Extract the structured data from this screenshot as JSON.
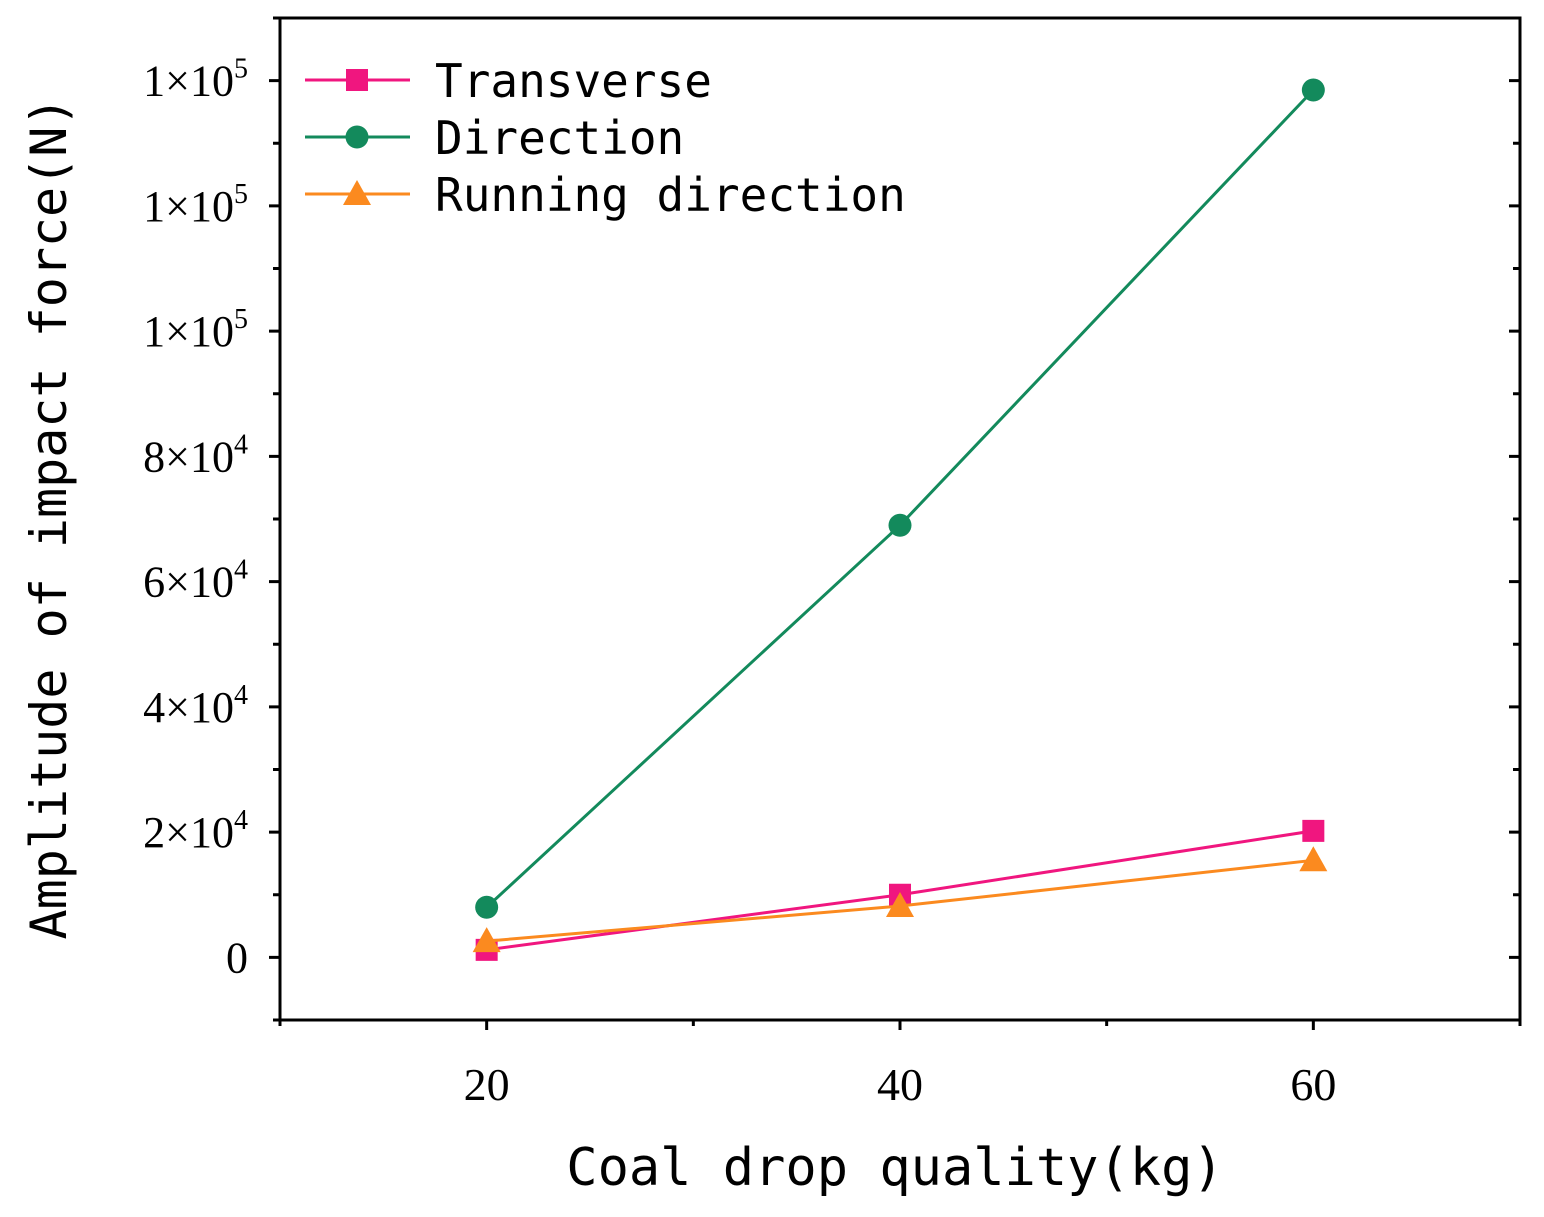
{
  "chart_data": {
    "type": "line",
    "title": "",
    "xlabel": "Coal drop quality(kg)",
    "ylabel": "Amplitude of impact force(N)",
    "xlim": [
      10,
      70
    ],
    "ylim": [
      -10000,
      150000
    ],
    "x": [
      20,
      40,
      60
    ],
    "xticks": [
      {
        "value": 20,
        "label": "20"
      },
      {
        "value": 40,
        "label": "40"
      },
      {
        "value": 60,
        "label": "60"
      }
    ],
    "xminor": [
      10,
      30,
      50,
      70
    ],
    "yticks": [
      {
        "value": 0,
        "label": "0"
      },
      {
        "value": 20000,
        "label": "2×10",
        "exp": "4"
      },
      {
        "value": 40000,
        "label": "4×10",
        "exp": "4"
      },
      {
        "value": 60000,
        "label": "6×10",
        "exp": "4"
      },
      {
        "value": 80000,
        "label": "8×10",
        "exp": "4"
      },
      {
        "value": 100000,
        "label": "1×10",
        "exp": "5"
      },
      {
        "value": 120000,
        "label": "1×10",
        "exp": "5"
      },
      {
        "value": 140000,
        "label": "1×10",
        "exp": "5"
      }
    ],
    "yminor": [
      -10000,
      10000,
      30000,
      50000,
      70000,
      90000,
      110000,
      130000,
      150000
    ],
    "grid": false,
    "legend_position": "top-left",
    "series": [
      {
        "name": "Transverse",
        "marker": "square",
        "color": "#f0167f",
        "values": [
          1200,
          10000,
          20200
        ]
      },
      {
        "name": "Direction",
        "marker": "circle",
        "color": "#138a5c",
        "values": [
          8000,
          69000,
          138500
        ]
      },
      {
        "name": "Running direction",
        "marker": "triangle",
        "color": "#fb8a1f",
        "values": [
          2600,
          8200,
          15500
        ]
      }
    ]
  }
}
